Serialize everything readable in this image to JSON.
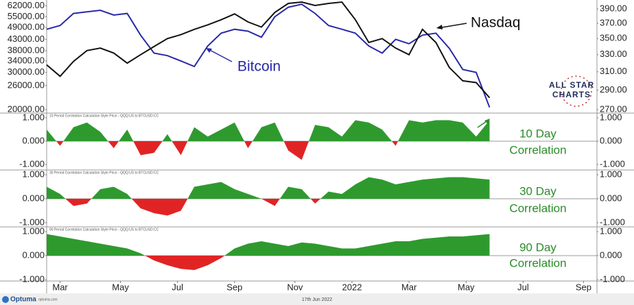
{
  "chart_data": [
    {
      "type": "line",
      "x": [
        0,
        2,
        4,
        6,
        8,
        10,
        12,
        14,
        16,
        18,
        20,
        22,
        24,
        26,
        28,
        30,
        32,
        34,
        36,
        38,
        40,
        42,
        44,
        46,
        48,
        50,
        52,
        54,
        56,
        58,
        60,
        62,
        64,
        66
      ],
      "xlim": [
        0,
        82
      ],
      "series": [
        {
          "name": "Bitcoin",
          "color": "#2828a8",
          "values": [
            48000,
            50000,
            57000,
            58000,
            59000,
            56000,
            57000,
            45000,
            37000,
            36000,
            34000,
            32000,
            40000,
            46000,
            48000,
            47000,
            44000,
            55000,
            61000,
            63000,
            57000,
            50000,
            48000,
            46000,
            40000,
            37000,
            43000,
            41000,
            45000,
            46000,
            39000,
            31000,
            30000,
            20500
          ]
        },
        {
          "name": "Nasdaq",
          "color": "#111111",
          "axis": "y2",
          "values": [
            318,
            305,
            322,
            335,
            338,
            332,
            320,
            330,
            340,
            350,
            355,
            362,
            368,
            375,
            383,
            372,
            365,
            385,
            398,
            400,
            395,
            398,
            400,
            375,
            345,
            350,
            338,
            330,
            362,
            345,
            315,
            300,
            298,
            282
          ]
        }
      ],
      "ylog": true,
      "y2log": true,
      "ylim": [
        19700,
        66000
      ],
      "yticks": [
        {
          "value": 20000,
          "label": "20000.00"
        },
        {
          "value": 26000,
          "label": "26000.00"
        },
        {
          "value": 30000,
          "label": "30000.00"
        },
        {
          "value": 34000,
          "label": "34000.00"
        },
        {
          "value": 38000,
          "label": "38000.00"
        },
        {
          "value": 43000,
          "label": "43000.00"
        },
        {
          "value": 49000,
          "label": "49000.00"
        },
        {
          "value": 55000,
          "label": "55000.00"
        },
        {
          "value": 62000,
          "label": "62000.00"
        }
      ],
      "y2lim": [
        268.6,
        403
      ],
      "y2ticks": [
        {
          "value": 270,
          "label": "270.00"
        },
        {
          "value": 290,
          "label": "290.00"
        },
        {
          "value": 310,
          "label": "310.00"
        },
        {
          "value": 330,
          "label": "330.00"
        },
        {
          "value": 350,
          "label": "350.00"
        },
        {
          "value": 370,
          "label": "370.00"
        },
        {
          "value": 390,
          "label": "390.00"
        }
      ],
      "annotations": [
        "Nasdaq",
        "Bitcoin"
      ]
    },
    {
      "type": "area",
      "title": "10 Period Correlation Calculation Style Price - QQQ:US to BTCUSD:CC",
      "x": [
        0,
        2,
        4,
        6,
        8,
        10,
        12,
        14,
        16,
        18,
        20,
        22,
        24,
        26,
        28,
        30,
        32,
        34,
        36,
        38,
        40,
        42,
        44,
        46,
        48,
        50,
        52,
        54,
        56,
        58,
        60,
        62,
        64,
        66
      ],
      "xlim": [
        0,
        82
      ],
      "values": [
        0.5,
        -0.2,
        0.6,
        0.8,
        0.4,
        -0.3,
        0.5,
        -0.6,
        -0.5,
        0.3,
        -0.6,
        0.6,
        0.2,
        0.5,
        0.8,
        -0.3,
        0.6,
        0.8,
        -0.4,
        -0.8,
        0.7,
        0.6,
        0.2,
        0.9,
        0.8,
        0.5,
        -0.2,
        0.9,
        0.8,
        0.9,
        0.9,
        0.8,
        0.2,
        0.9
      ],
      "color": "#2e9a2e",
      "negative_color": "#e02424",
      "ylim": [
        -1,
        1
      ],
      "yticks": [
        {
          "value": 1,
          "label": "1.000"
        },
        {
          "value": 0,
          "label": "0.000"
        },
        {
          "value": -1,
          "label": "-1.000"
        }
      ],
      "annotations": [
        "10 Day",
        "Correlation"
      ]
    },
    {
      "type": "area",
      "title": "30 Period Correlation Calculation Style Price - QQQ:US to BTCUSD:CC",
      "x": [
        0,
        2,
        4,
        6,
        8,
        10,
        12,
        14,
        16,
        18,
        20,
        22,
        24,
        26,
        28,
        30,
        32,
        34,
        36,
        38,
        40,
        42,
        44,
        46,
        48,
        50,
        52,
        54,
        56,
        58,
        60,
        62,
        64,
        66
      ],
      "xlim": [
        0,
        82
      ],
      "values": [
        0.5,
        0.2,
        -0.3,
        -0.2,
        0.4,
        0.5,
        0.2,
        -0.4,
        -0.6,
        -0.7,
        -0.5,
        0.5,
        0.6,
        0.7,
        0.4,
        0.2,
        0.0,
        -0.3,
        0.5,
        0.4,
        -0.2,
        0.3,
        0.2,
        0.6,
        0.9,
        0.8,
        0.6,
        0.7,
        0.8,
        0.85,
        0.9,
        0.9,
        0.85,
        0.8
      ],
      "color": "#2e9a2e",
      "negative_color": "#e02424",
      "ylim": [
        -1,
        1
      ],
      "yticks": [
        {
          "value": 1,
          "label": "1.000"
        },
        {
          "value": 0,
          "label": "0.000"
        },
        {
          "value": -1,
          "label": "-1.000"
        }
      ],
      "annotations": [
        "30 Day",
        "Correlation"
      ]
    },
    {
      "type": "area",
      "title": "90 Period Correlation Calculation Style Price - QQQ:US to BTCUSD:CC",
      "x": [
        0,
        2,
        4,
        6,
        8,
        10,
        12,
        14,
        16,
        18,
        20,
        22,
        24,
        26,
        28,
        30,
        32,
        34,
        36,
        38,
        40,
        42,
        44,
        46,
        48,
        50,
        52,
        54,
        56,
        58,
        60,
        62,
        64,
        66
      ],
      "xlim": [
        0,
        82
      ],
      "values": [
        0.9,
        0.8,
        0.7,
        0.6,
        0.5,
        0.4,
        0.3,
        0.1,
        -0.2,
        -0.4,
        -0.55,
        -0.6,
        -0.4,
        -0.1,
        0.3,
        0.5,
        0.6,
        0.5,
        0.4,
        0.55,
        0.5,
        0.4,
        0.3,
        0.3,
        0.4,
        0.5,
        0.6,
        0.6,
        0.7,
        0.75,
        0.8,
        0.8,
        0.85,
        0.9
      ],
      "color": "#2e9a2e",
      "negative_color": "#e02424",
      "ylim": [
        -1,
        1
      ],
      "yticks": [
        {
          "value": 1,
          "label": "1.000"
        },
        {
          "value": 0,
          "label": "0.000"
        },
        {
          "value": -1,
          "label": "-1.000"
        }
      ],
      "xticks": [
        {
          "value": 2,
          "label": "Mar"
        },
        {
          "value": 11,
          "label": "May"
        },
        {
          "value": 19.5,
          "label": "Jul"
        },
        {
          "value": 28,
          "label": "Sep"
        },
        {
          "value": 37,
          "label": "Nov"
        },
        {
          "value": 45.5,
          "label": "2022"
        },
        {
          "value": 54,
          "label": "Mar"
        },
        {
          "value": 62.5,
          "label": "May"
        },
        {
          "value": 71,
          "label": "Jul"
        },
        {
          "value": 80,
          "label": "Sep"
        }
      ],
      "annotations": [
        "90 Day",
        "Correlation"
      ]
    }
  ],
  "logo": [
    "ALL STAR",
    "CHARTS"
  ],
  "footer": {
    "brand": "Optuma",
    "site": "optuma.com",
    "date": "17th Jun 2022"
  }
}
